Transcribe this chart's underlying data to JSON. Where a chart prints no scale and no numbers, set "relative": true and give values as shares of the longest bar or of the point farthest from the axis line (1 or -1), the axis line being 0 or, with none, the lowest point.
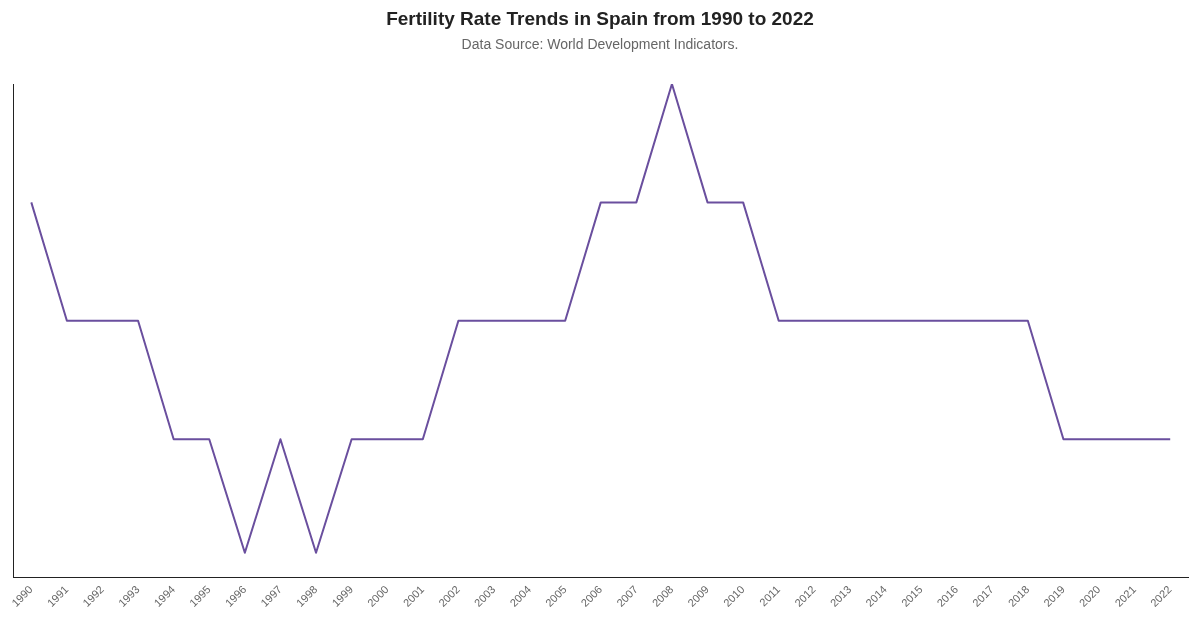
{
  "chart_data": {
    "type": "line",
    "title": "Fertility Rate Trends in Spain from 1990 to 2022",
    "subtitle": "Data Source: World Development Indicators.",
    "relative": true,
    "categories": [
      "1990",
      "1991",
      "1992",
      "1993",
      "1994",
      "1995",
      "1996",
      "1997",
      "1998",
      "1999",
      "2000",
      "2001",
      "2002",
      "2003",
      "2004",
      "2005",
      "2006",
      "2007",
      "2008",
      "2009",
      "2010",
      "2011",
      "2012",
      "2013",
      "2014",
      "2015",
      "2016",
      "2017",
      "2018",
      "2019",
      "2020",
      "2021",
      "2022"
    ],
    "series": [
      {
        "color": "#6a4f9e",
        "values": [
          0.76,
          0.52,
          0.52,
          0.52,
          0.28,
          0.28,
          0.05,
          0.28,
          0.05,
          0.28,
          0.28,
          0.28,
          0.52,
          0.52,
          0.52,
          0.52,
          0.76,
          0.76,
          1,
          0.76,
          0.76,
          0.52,
          0.52,
          0.52,
          0.52,
          0.52,
          0.52,
          0.52,
          0.52,
          0.28,
          0.28,
          0.28,
          0.28
        ]
      }
    ],
    "grid": false,
    "legend": false,
    "marker": "none",
    "line_style": "solid"
  }
}
